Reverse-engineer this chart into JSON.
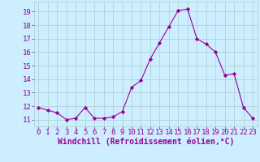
{
  "x": [
    0,
    1,
    2,
    3,
    4,
    5,
    6,
    7,
    8,
    9,
    10,
    11,
    12,
    13,
    14,
    15,
    16,
    17,
    18,
    19,
    20,
    21,
    22,
    23
  ],
  "y": [
    11.9,
    11.7,
    11.5,
    11.0,
    11.1,
    11.9,
    11.1,
    11.1,
    11.2,
    11.6,
    13.4,
    13.9,
    15.5,
    16.7,
    17.9,
    19.1,
    19.2,
    17.0,
    16.6,
    16.0,
    14.3,
    14.4,
    11.9,
    11.1
  ],
  "line_color": "#990099",
  "marker": "D",
  "marker_size": 2.2,
  "bg_color": "#cceeff",
  "grid_color": "#aacccc",
  "xlabel": "Windchill (Refroidissement éolien,°C)",
  "xlabel_color": "#990099",
  "tick_color": "#990099",
  "ylim": [
    10.5,
    19.75
  ],
  "xlim": [
    -0.5,
    23.5
  ],
  "yticks": [
    11,
    12,
    13,
    14,
    15,
    16,
    17,
    18,
    19
  ],
  "xticks": [
    0,
    1,
    2,
    3,
    4,
    5,
    6,
    7,
    8,
    9,
    10,
    11,
    12,
    13,
    14,
    15,
    16,
    17,
    18,
    19,
    20,
    21,
    22,
    23
  ],
  "tick_fontsize": 6.5,
  "xlabel_fontsize": 7.0,
  "xlabel_fontweight": "bold"
}
